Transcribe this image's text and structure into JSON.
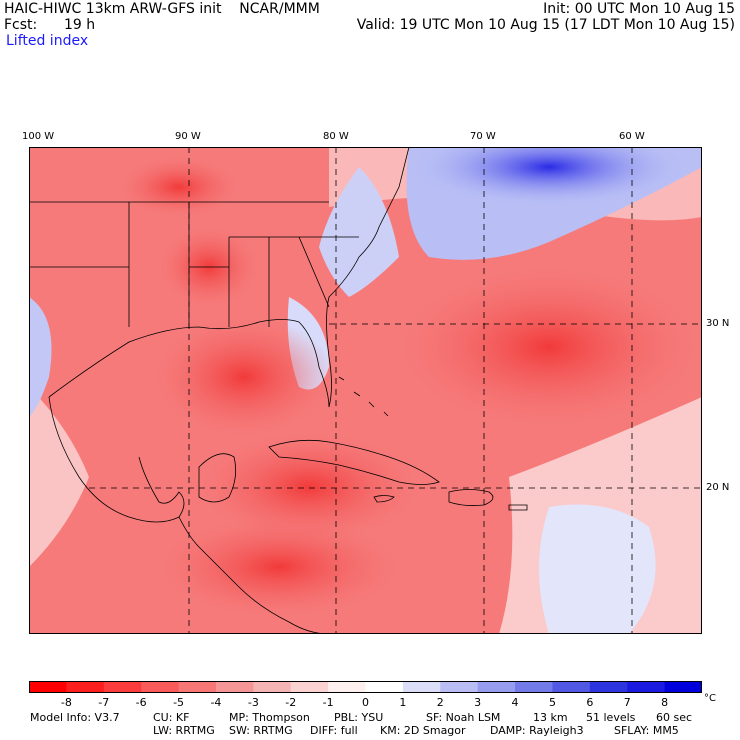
{
  "header": {
    "title": "HAIC-HIWC 13km ARW-GFS init    NCAR/MMM",
    "fcst_label": "Fcst:",
    "fcst_value": "19 h",
    "field": "Lifted index",
    "init": "Init: 00 UTC Mon 10 Aug 15",
    "valid": "Valid: 19 UTC Mon 10 Aug 15 (17 LDT Mon 10 Aug 15)"
  },
  "map": {
    "lon_ticks": [
      "100 W",
      "90 W",
      "80 W",
      "70 W",
      "60 W"
    ],
    "lat_ticks": [
      "30 N",
      "20 N"
    ],
    "colors": {
      "neg_strong": "#ff1a1a",
      "neg_mid": "#f46060",
      "neg_light": "#fbb0b0",
      "neutral": "#ffffff",
      "pos_light": "#b8bff5",
      "pos_strong": "#1c1ce6"
    }
  },
  "colorbar": {
    "labels": [
      "-8",
      "-7",
      "-6",
      "-5",
      "-4",
      "-3",
      "-2",
      "-1",
      "0",
      "1",
      "2",
      "3",
      "4",
      "5",
      "6",
      "7",
      "8"
    ],
    "unit": "°C",
    "colors": [
      "#ff0000",
      "#fd1e1e",
      "#fb3c3c",
      "#f95a5a",
      "#f77777",
      "#f59696",
      "#f5b4b4",
      "#fbd2d2",
      "#fff0f0",
      "#ffffff",
      "#dcdef8",
      "#b9bdf3",
      "#969cee",
      "#737be9",
      "#5058e4",
      "#2d35df",
      "#1a1ae0",
      "#0000dd"
    ]
  },
  "model_info": {
    "line1": [
      "Model Info: V3.7",
      "CU: KF",
      "MP: Thompson",
      "PBL: YSU",
      "SF: Noah LSM",
      "13 km",
      "51 levels",
      "60 sec"
    ],
    "line2": [
      "LW: RRTMG",
      "SW: RRTMG",
      "DIFF: full",
      "KM: 2D Smagor",
      "DAMP: Rayleigh3",
      "SFLAY: MM5"
    ]
  }
}
